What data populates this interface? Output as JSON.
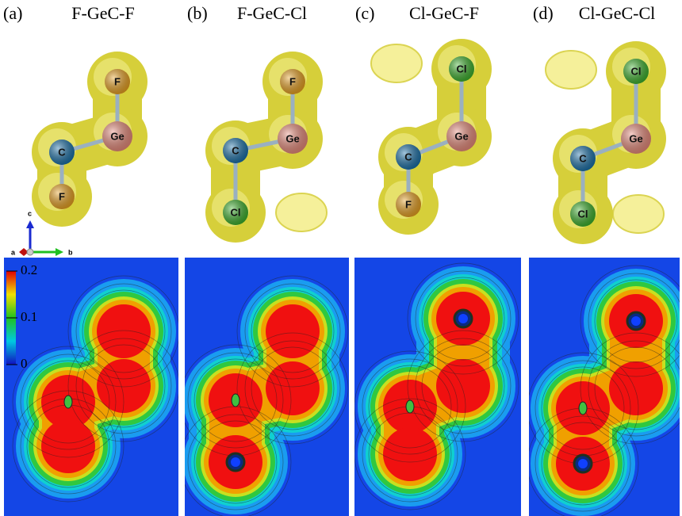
{
  "panels": [
    {
      "label": "(a)",
      "title": "F-GeC-F",
      "atoms": [
        "F",
        "Ge",
        "C",
        "F"
      ]
    },
    {
      "label": "(b)",
      "title": "F-GeC-Cl",
      "atoms": [
        "F",
        "Ge",
        "C",
        "Cl"
      ]
    },
    {
      "label": "(c)",
      "title": "Cl-GeC-F",
      "atoms": [
        "Cl",
        "Ge",
        "C",
        "F"
      ]
    },
    {
      "label": "(d)",
      "title": "Cl-GeC-Cl",
      "atoms": [
        "Cl",
        "Ge",
        "C",
        "Cl"
      ]
    }
  ],
  "axes": {
    "a": "a",
    "b": "b",
    "c": "c"
  },
  "colorbar": {
    "range": [
      0,
      0.2
    ],
    "ticks": [
      0.2,
      0.1,
      0
    ]
  }
}
